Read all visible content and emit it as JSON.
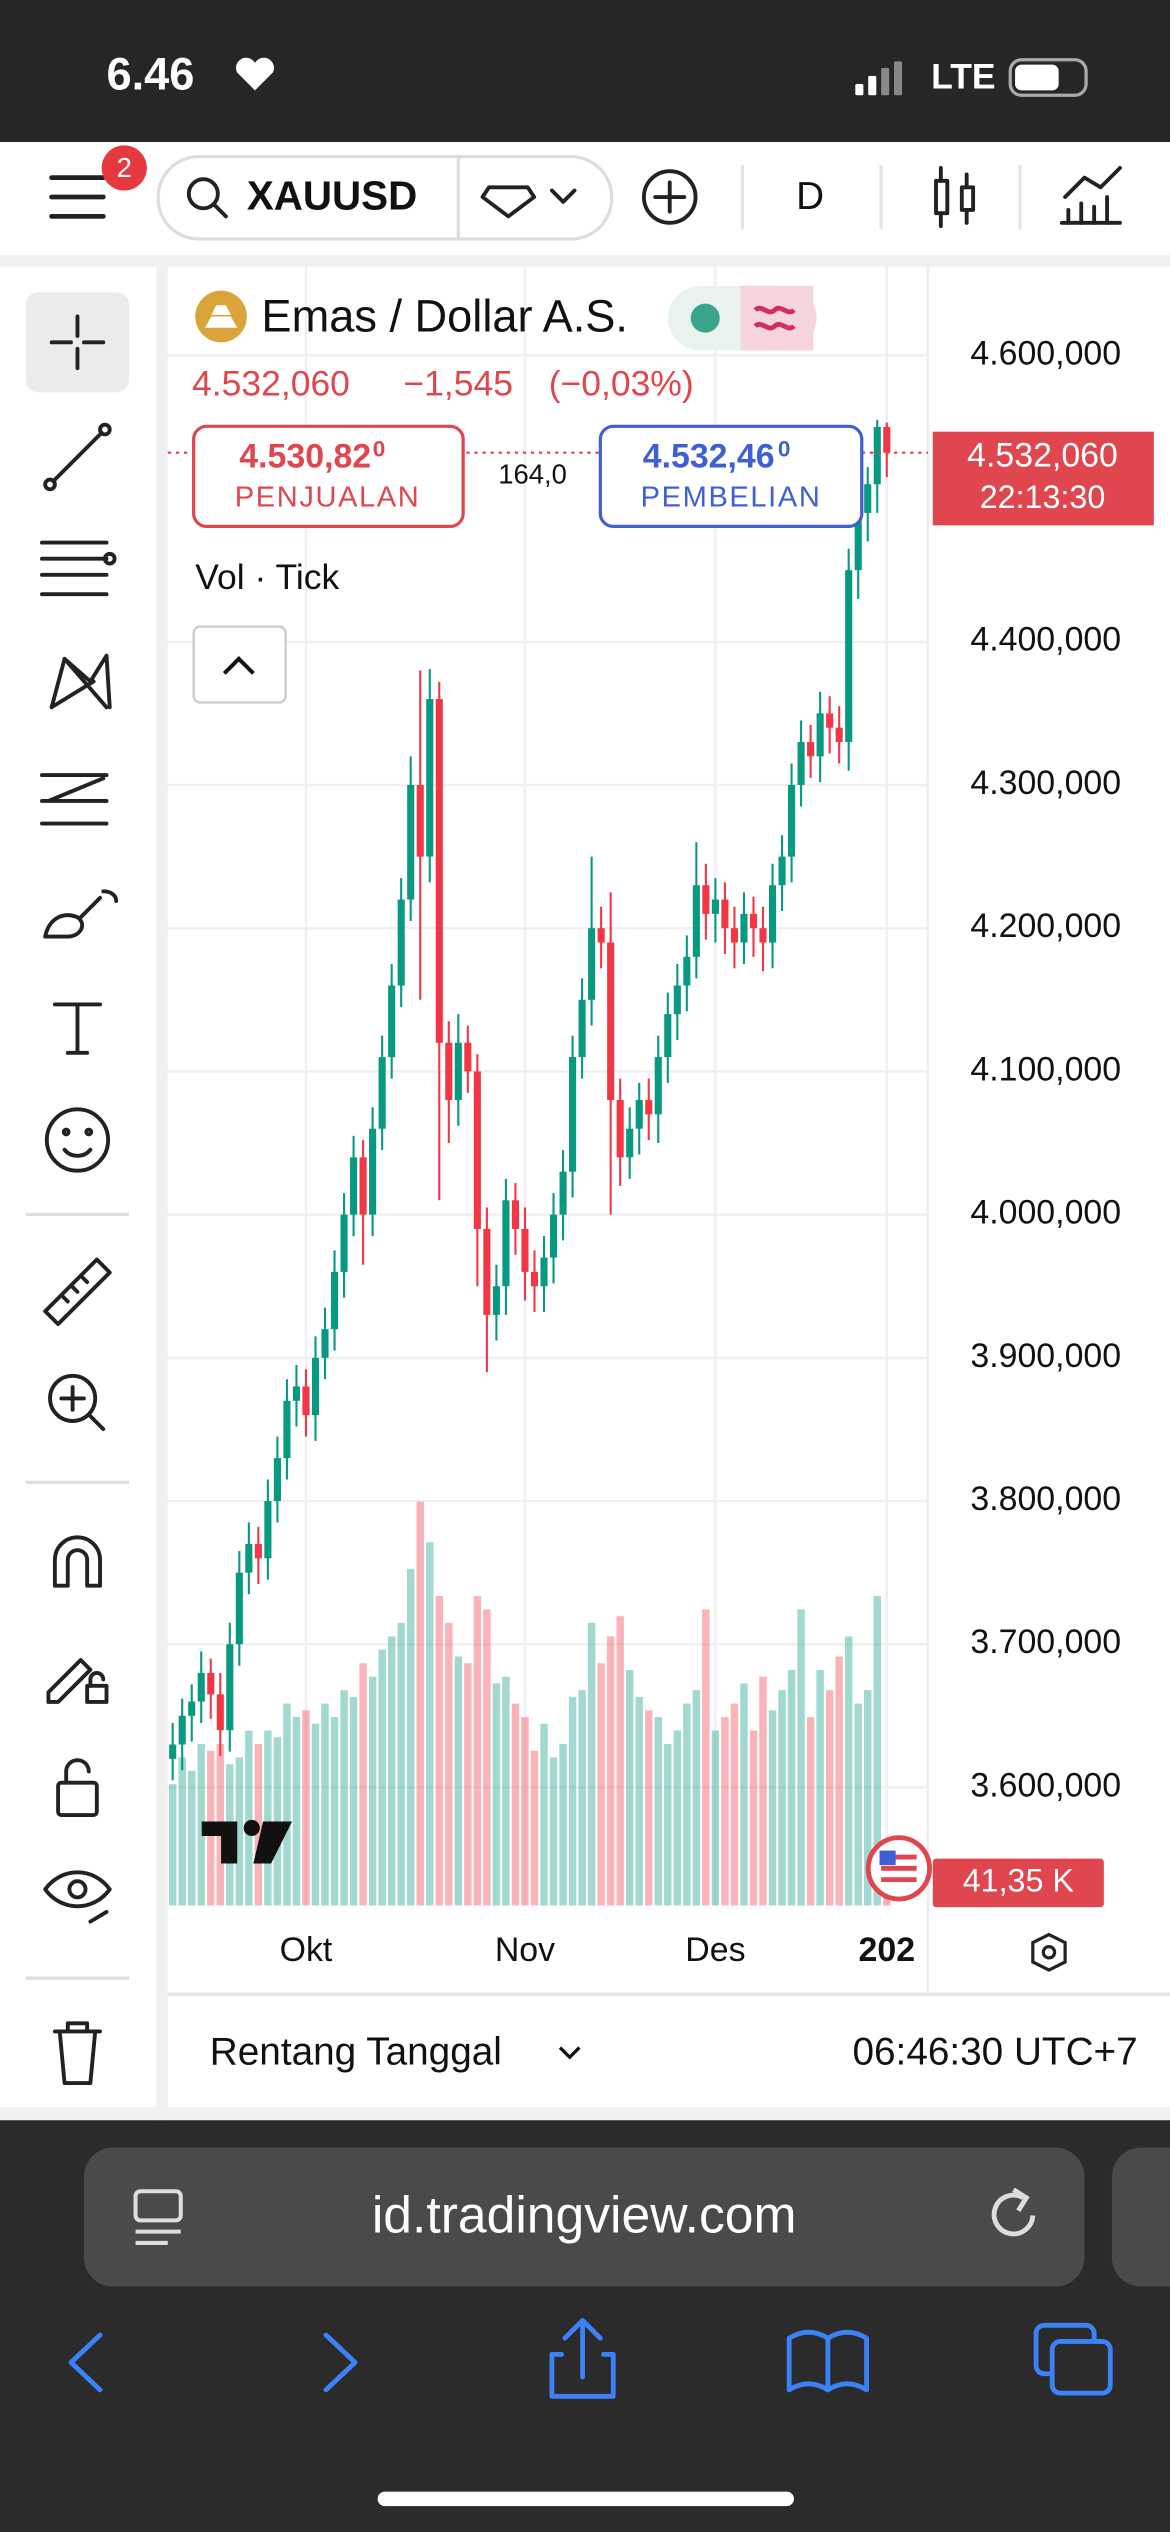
{
  "status_bar": {
    "time": "6.46",
    "network": "LTE"
  },
  "toolbar": {
    "notifications": "2",
    "symbol": "XAUUSD",
    "interval": "D"
  },
  "chart_data": {
    "type": "candlestick",
    "title": "Emas / Dollar A.S.",
    "price": "4.532,060",
    "change": "−1,545",
    "change_percent": "(−0,03%)",
    "sell": {
      "price": "4.530,82",
      "price_suffix": "0",
      "label": "PENJUALAN"
    },
    "spread": "164,0",
    "buy": {
      "price": "4.532,46",
      "price_suffix": "0",
      "label": "PEMBELIAN"
    },
    "indicator": "Vol · Tick",
    "categories": [
      null,
      null,
      null,
      null,
      null,
      null,
      null,
      null,
      null,
      null,
      null,
      null,
      null,
      null,
      "Okt",
      null,
      null,
      null,
      null,
      null,
      null,
      null,
      null,
      null,
      null,
      null,
      null,
      null,
      null,
      null,
      null,
      null,
      null,
      null,
      null,
      null,
      null,
      "Nov",
      null,
      null,
      null,
      null,
      null,
      null,
      null,
      null,
      null,
      null,
      null,
      null,
      null,
      null,
      null,
      null,
      null,
      null,
      null,
      "Des",
      null,
      null,
      null,
      null,
      null,
      null,
      null,
      null,
      null,
      null,
      null,
      null,
      null,
      null,
      null,
      null,
      null,
      "202"
    ],
    "open": [
      3620,
      3630,
      3650,
      3660,
      3680,
      3665,
      3640,
      3700,
      3750,
      3770,
      3760,
      3800,
      3830,
      3870,
      3880,
      3860,
      3900,
      3920,
      3960,
      4000,
      4040,
      4000,
      4060,
      4110,
      4160,
      4220,
      4300,
      4250,
      4360,
      4120,
      4080,
      4120,
      4100,
      3990,
      3930,
      3950,
      4010,
      3990,
      3960,
      3950,
      3970,
      4000,
      4030,
      4110,
      4150,
      4200,
      4190,
      4080,
      4040,
      4060,
      4080,
      4070,
      4110,
      4140,
      4160,
      4180,
      4230,
      4210,
      4220,
      4200,
      4190,
      4210,
      4200,
      4190,
      4230,
      4250,
      4300,
      4330,
      4320,
      4350,
      4340,
      4330,
      4450,
      4490,
      4510,
      4550
    ],
    "high": [
      3645,
      3662,
      3672,
      3695,
      3690,
      3680,
      3715,
      3765,
      3785,
      3782,
      3815,
      3845,
      3885,
      3895,
      3892,
      3915,
      3935,
      3975,
      4015,
      4055,
      4052,
      4075,
      4125,
      4175,
      4235,
      4320,
      4380,
      4381,
      4372,
      4135,
      4140,
      4132,
      4112,
      4005,
      3965,
      4025,
      4022,
      4005,
      3975,
      3985,
      4015,
      4045,
      4125,
      4165,
      4250,
      4215,
      4225,
      4095,
      4075,
      4092,
      4095,
      4125,
      4155,
      4175,
      4195,
      4260,
      4245,
      4235,
      4232,
      4215,
      4225,
      4222,
      4215,
      4245,
      4265,
      4315,
      4345,
      4342,
      4365,
      4362,
      4355,
      4465,
      4502,
      4522,
      4555,
      4553
    ],
    "low": [
      3605,
      3612,
      3632,
      3645,
      3648,
      3622,
      3625,
      3685,
      3735,
      3742,
      3745,
      3785,
      3815,
      3852,
      3845,
      3842,
      3885,
      3905,
      3942,
      3985,
      3965,
      3985,
      4045,
      4095,
      4145,
      4205,
      4150,
      4232,
      4010,
      4050,
      4062,
      4085,
      3950,
      3890,
      3912,
      3930,
      3972,
      3940,
      3932,
      3932,
      3952,
      3982,
      4012,
      4095,
      4132,
      4172,
      4000,
      4020,
      4025,
      4042,
      4052,
      4050,
      4092,
      4122,
      4142,
      4165,
      4192,
      4190,
      4182,
      4172,
      4175,
      4180,
      4170,
      4172,
      4212,
      4232,
      4285,
      4305,
      4302,
      4322,
      4315,
      4310,
      4430,
      4470,
      4490,
      4515
    ],
    "close": [
      3630,
      3650,
      3660,
      3680,
      3665,
      3640,
      3700,
      3750,
      3770,
      3760,
      3800,
      3830,
      3870,
      3880,
      3860,
      3900,
      3920,
      3960,
      4000,
      4040,
      4000,
      4060,
      4110,
      4160,
      4220,
      4300,
      4250,
      4360,
      4120,
      4080,
      4120,
      4100,
      3990,
      3930,
      3950,
      4010,
      3990,
      3960,
      3950,
      3970,
      4000,
      4030,
      4110,
      4150,
      4200,
      4190,
      4080,
      4040,
      4060,
      4080,
      4070,
      4110,
      4140,
      4160,
      4180,
      4230,
      4210,
      4220,
      4200,
      4190,
      4210,
      4200,
      4190,
      4230,
      4250,
      4300,
      4330,
      4320,
      4350,
      4340,
      4330,
      4450,
      4490,
      4510,
      4550,
      4532.06
    ],
    "volume": [
      90,
      110,
      100,
      120,
      115,
      120,
      105,
      110,
      130,
      120,
      130,
      125,
      150,
      140,
      145,
      135,
      150,
      140,
      160,
      155,
      180,
      170,
      190,
      200,
      210,
      250,
      300,
      270,
      230,
      210,
      185,
      180,
      230,
      220,
      165,
      170,
      150,
      140,
      115,
      135,
      110,
      120,
      155,
      160,
      210,
      180,
      200,
      215,
      175,
      155,
      145,
      140,
      120,
      130,
      150,
      160,
      220,
      130,
      140,
      150,
      165,
      130,
      170,
      145,
      160,
      175,
      220,
      140,
      175,
      160,
      185,
      200,
      150,
      160,
      230,
      41.35
    ],
    "up_color": "#089981",
    "down_color": "#f23645",
    "ylim": [
      3517.6,
      4662.1
    ],
    "yticks": [
      {
        "value": 4600,
        "label": "4.600,000"
      },
      {
        "value": 4400,
        "label": "4.400,000"
      },
      {
        "value": 4300,
        "label": "4.300,000"
      },
      {
        "value": 4200,
        "label": "4.200,000"
      },
      {
        "value": 4100,
        "label": "4.100,000"
      },
      {
        "value": 4000,
        "label": "4.000,000"
      },
      {
        "value": 3900,
        "label": "3.900,000"
      },
      {
        "value": 3800,
        "label": "3.800,000"
      },
      {
        "value": 3700,
        "label": "3.700,000"
      },
      {
        "value": 3600,
        "label": "3.600,000"
      }
    ],
    "grid": true,
    "price_tag": {
      "label": "4.532,060",
      "countdown": "22:13:30"
    },
    "volume_tag": "41,35 K"
  },
  "footer": {
    "range": "Rentang Tanggal",
    "time": "06:46:30 UTC+7"
  },
  "browser": {
    "url": "id.tradingview.com"
  }
}
